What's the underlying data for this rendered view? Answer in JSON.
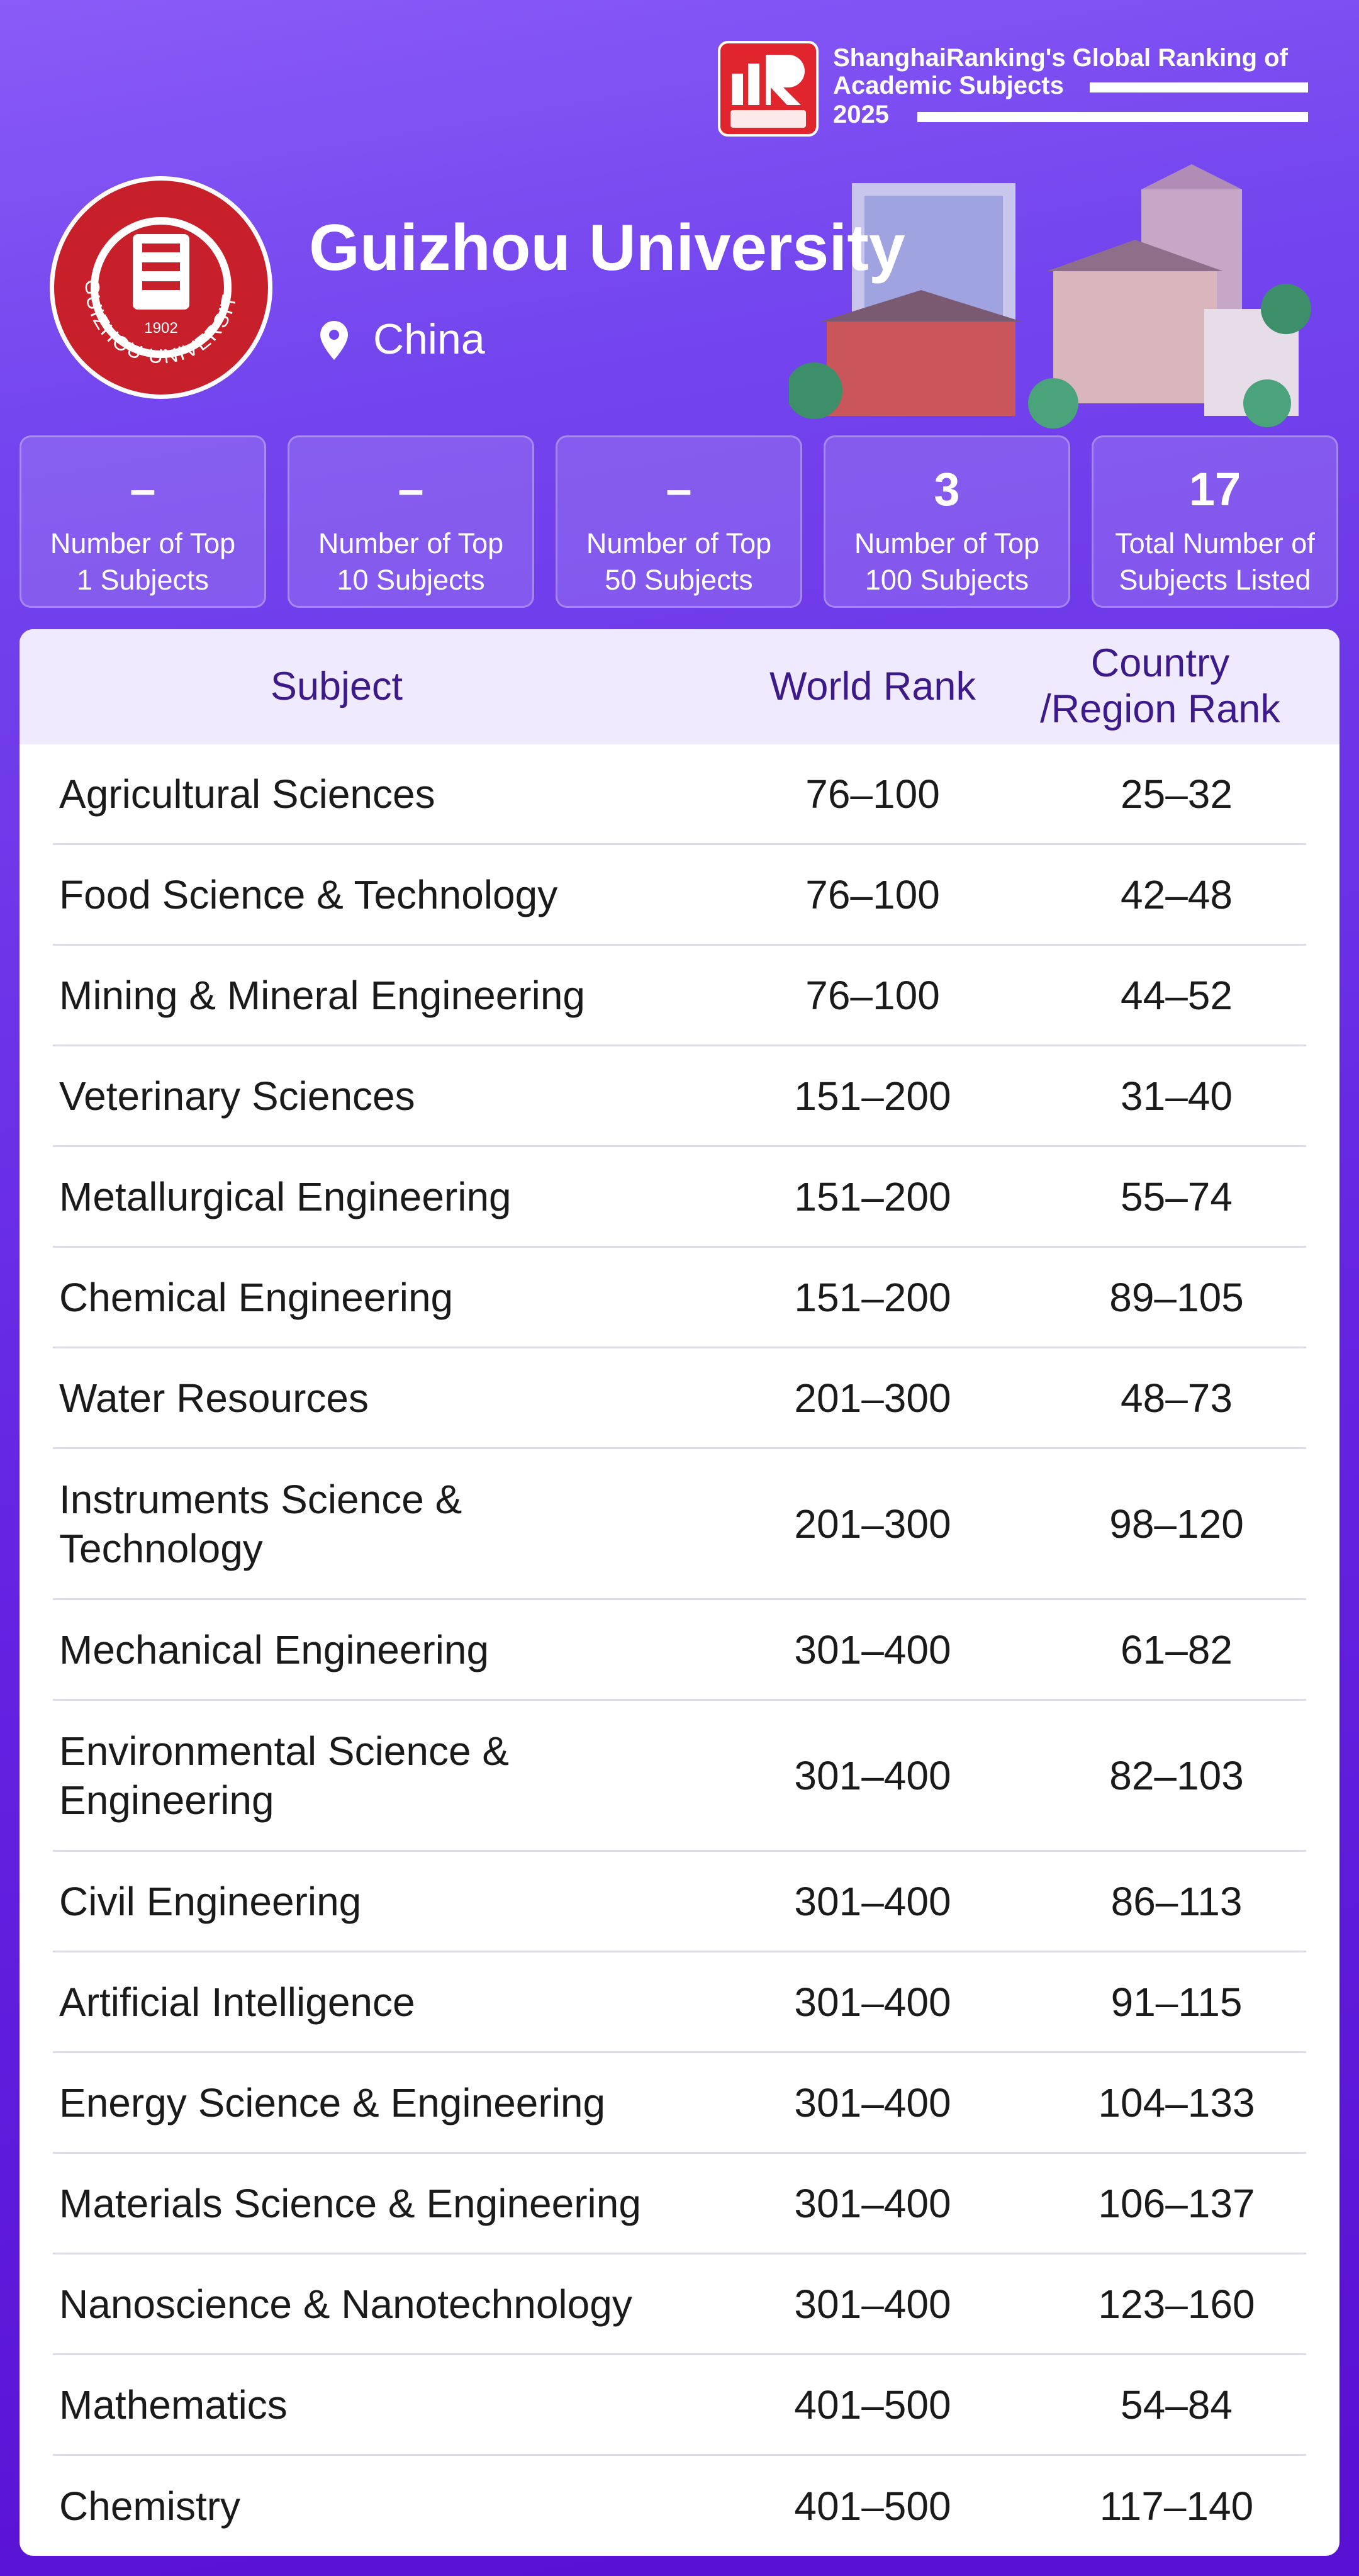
{
  "header": {
    "brand": {
      "title": "ShanghaiRanking's Global Ranking of",
      "subtitle": "Academic Subjects",
      "year": "2025"
    },
    "university": {
      "name": "Guizhou University",
      "country": "China",
      "seal_name": "GUIZHOU UNIVERSITY",
      "seal_year": "1902"
    }
  },
  "stats": [
    {
      "value": "–",
      "label": "Number of Top 1 Subjects"
    },
    {
      "value": "–",
      "label": "Number of Top 10 Subjects"
    },
    {
      "value": "–",
      "label": "Number of Top 50 Subjects"
    },
    {
      "value": "3",
      "label": "Number of Top 100 Subjects"
    },
    {
      "value": "17",
      "label": "Total Number of Subjects Listed"
    }
  ],
  "table": {
    "columns": [
      "Subject",
      "World Rank",
      "Country /Region Rank"
    ],
    "rows": [
      [
        "Agricultural Sciences",
        "76–100",
        "25–32"
      ],
      [
        "Food Science & Technology",
        "76–100",
        "42–48"
      ],
      [
        "Mining & Mineral Engineering",
        "76–100",
        "44–52"
      ],
      [
        "Veterinary Sciences",
        "151–200",
        "31–40"
      ],
      [
        "Metallurgical Engineering",
        "151–200",
        "55–74"
      ],
      [
        "Chemical Engineering",
        "151–200",
        "89–105"
      ],
      [
        "Water Resources",
        "201–300",
        "48–73"
      ],
      [
        "Instruments Science & Technology",
        "201–300",
        "98–120"
      ],
      [
        "Mechanical Engineering",
        "301–400",
        "61–82"
      ],
      [
        "Environmental Science & Engineering",
        "301–400",
        "82–103"
      ],
      [
        "Civil Engineering",
        "301–400",
        "86–113"
      ],
      [
        "Artificial Intelligence",
        "301–400",
        "91–115"
      ],
      [
        "Energy Science & Engineering",
        "301–400",
        "104–133"
      ],
      [
        "Materials Science & Engineering",
        "301–400",
        "106–137"
      ],
      [
        "Nanoscience & Nanotechnology",
        "301–400",
        "123–160"
      ],
      [
        "Mathematics",
        "401–500",
        "54–84"
      ],
      [
        "Chemistry",
        "401–500",
        "117–140"
      ]
    ]
  }
}
